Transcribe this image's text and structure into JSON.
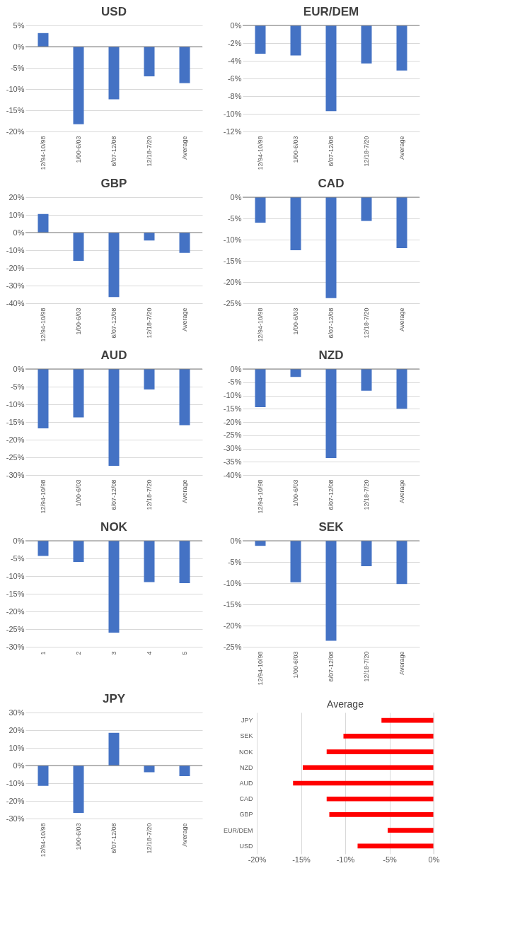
{
  "chart_data": [
    {
      "type": "bar",
      "title": "USD",
      "categories": [
        "12/94-10/98",
        "1/00-6/03",
        "6/07-12/08",
        "12/18-7/20",
        "Average"
      ],
      "series": [
        {
          "color": "#4472c4",
          "values": [
            3.2,
            -18.3,
            -12.4,
            -7.0,
            -8.6
          ]
        }
      ],
      "ylim": [
        -20,
        5
      ],
      "yticks": [
        {
          "value": -20,
          "label": "-20%"
        },
        {
          "value": -15,
          "label": "-15%"
        },
        {
          "value": -10,
          "label": "-10%"
        },
        {
          "value": -5,
          "label": "-5%"
        },
        {
          "value": 0,
          "label": "0%"
        },
        {
          "value": 5,
          "label": "5%"
        }
      ],
      "grid": "y",
      "legend": false
    },
    {
      "type": "bar",
      "title": "EUR/DEM",
      "categories": [
        "12/94-10/98",
        "1/00-6/03",
        "6/07-12/08",
        "12/18-7/20",
        "Average"
      ],
      "series": [
        {
          "color": "#4472c4",
          "values": [
            -3.2,
            -3.4,
            -9.7,
            -4.3,
            -5.1
          ]
        }
      ],
      "ylim": [
        -12,
        0
      ],
      "yticks": [
        {
          "value": -12,
          "label": "-12%"
        },
        {
          "value": -10,
          "label": "-10%"
        },
        {
          "value": -8,
          "label": "-8%"
        },
        {
          "value": -6,
          "label": "-6%"
        },
        {
          "value": -4,
          "label": "-4%"
        },
        {
          "value": -2,
          "label": "-2%"
        },
        {
          "value": 0,
          "label": "0%"
        }
      ],
      "grid": "y",
      "legend": false
    },
    {
      "type": "bar",
      "title": "GBP",
      "categories": [
        "12/94-10/98",
        "1/00-6/03",
        "6/07-12/08",
        "12/18-7/20",
        "Average"
      ],
      "series": [
        {
          "color": "#4472c4",
          "values": [
            10.5,
            -16,
            -36.5,
            -4.5,
            -11.5
          ]
        }
      ],
      "ylim": [
        -40,
        20
      ],
      "yticks": [
        {
          "value": -40,
          "label": "-40%"
        },
        {
          "value": -30,
          "label": "-30%"
        },
        {
          "value": -20,
          "label": "-20%"
        },
        {
          "value": -10,
          "label": "-10%"
        },
        {
          "value": 0,
          "label": "0%"
        },
        {
          "value": 10,
          "label": "10%"
        },
        {
          "value": 20,
          "label": "20%"
        }
      ],
      "grid": "y",
      "legend": false
    },
    {
      "type": "bar",
      "title": "CAD",
      "categories": [
        "12/94-10/98",
        "1/00-6/03",
        "6/07-12/08",
        "12/18-7/20",
        "Average"
      ],
      "series": [
        {
          "color": "#4472c4",
          "values": [
            -6,
            -12.5,
            -23.8,
            -5.6,
            -12
          ]
        }
      ],
      "ylim": [
        -25,
        0
      ],
      "yticks": [
        {
          "value": -25,
          "label": "-25%"
        },
        {
          "value": -20,
          "label": "-20%"
        },
        {
          "value": -15,
          "label": "-15%"
        },
        {
          "value": -10,
          "label": "-10%"
        },
        {
          "value": -5,
          "label": "-5%"
        },
        {
          "value": 0,
          "label": "0%"
        }
      ],
      "grid": "y",
      "legend": false
    },
    {
      "type": "bar",
      "title": "AUD",
      "categories": [
        "12/94-10/98",
        "1/00-6/03",
        "6/07-12/08",
        "12/18-7/20",
        "Average"
      ],
      "series": [
        {
          "color": "#4472c4",
          "values": [
            -16.8,
            -13.7,
            -27.4,
            -5.8,
            -15.9
          ]
        }
      ],
      "ylim": [
        -30,
        0
      ],
      "yticks": [
        {
          "value": -30,
          "label": "-30%"
        },
        {
          "value": -25,
          "label": "-25%"
        },
        {
          "value": -20,
          "label": "-20%"
        },
        {
          "value": -15,
          "label": "-15%"
        },
        {
          "value": -10,
          "label": "-10%"
        },
        {
          "value": -5,
          "label": "-5%"
        },
        {
          "value": 0,
          "label": "0%"
        }
      ],
      "grid": "y",
      "legend": false
    },
    {
      "type": "bar",
      "title": "NZD",
      "categories": [
        "12/94-10/98",
        "1/00-6/03",
        "6/07-12/08",
        "12/18-7/20",
        "Average"
      ],
      "series": [
        {
          "color": "#4472c4",
          "values": [
            -14.4,
            -3,
            -33.6,
            -8.2,
            -15
          ]
        }
      ],
      "ylim": [
        -40,
        0
      ],
      "yticks": [
        {
          "value": -40,
          "label": "-40%"
        },
        {
          "value": -35,
          "label": "-35%"
        },
        {
          "value": -30,
          "label": "-30%"
        },
        {
          "value": -25,
          "label": "-25%"
        },
        {
          "value": -20,
          "label": "-20%"
        },
        {
          "value": -15,
          "label": "-15%"
        },
        {
          "value": -10,
          "label": "-10%"
        },
        {
          "value": -5,
          "label": "-5%"
        },
        {
          "value": 0,
          "label": "0%"
        }
      ],
      "grid": "y",
      "legend": false
    },
    {
      "type": "bar",
      "title": "NOK",
      "categories": [
        "1",
        "2",
        "3",
        "4",
        "5"
      ],
      "series": [
        {
          "color": "#4472c4",
          "values": [
            -4.3,
            -6,
            -26,
            -11.7,
            -12
          ]
        }
      ],
      "ylim": [
        -30,
        0
      ],
      "yticks": [
        {
          "value": -30,
          "label": "-30%"
        },
        {
          "value": -25,
          "label": "-25%"
        },
        {
          "value": -20,
          "label": "-20%"
        },
        {
          "value": -15,
          "label": "-15%"
        },
        {
          "value": -10,
          "label": "-10%"
        },
        {
          "value": -5,
          "label": "-5%"
        },
        {
          "value": 0,
          "label": "0%"
        }
      ],
      "grid": "y",
      "legend": false
    },
    {
      "type": "bar",
      "title": "SEK",
      "categories": [
        "12/94-10/98",
        "1/00-6/03",
        "6/07-12/08",
        "12/18-7/20",
        "Average"
      ],
      "series": [
        {
          "color": "#4472c4",
          "values": [
            -1.2,
            -9.8,
            -23.6,
            -6,
            -10.2
          ]
        }
      ],
      "ylim": [
        -25,
        0
      ],
      "yticks": [
        {
          "value": -25,
          "label": "-25%"
        },
        {
          "value": -20,
          "label": "-20%"
        },
        {
          "value": -15,
          "label": "-15%"
        },
        {
          "value": -10,
          "label": "-10%"
        },
        {
          "value": -5,
          "label": "-5%"
        },
        {
          "value": 0,
          "label": "0%"
        }
      ],
      "grid": "y",
      "legend": false
    },
    {
      "type": "bar",
      "title": "JPY",
      "categories": [
        "12/94-10/98",
        "1/00-6/03",
        "6/07-12/08",
        "12/18-7/20",
        "Average"
      ],
      "series": [
        {
          "color": "#4472c4",
          "values": [
            -11.5,
            -26.8,
            18.5,
            -3.8,
            -6
          ]
        }
      ],
      "ylim": [
        -30,
        30
      ],
      "yticks": [
        {
          "value": -30,
          "label": "-30%"
        },
        {
          "value": -20,
          "label": "-20%"
        },
        {
          "value": -10,
          "label": "-10%"
        },
        {
          "value": 0,
          "label": "0%"
        },
        {
          "value": 10,
          "label": "10%"
        },
        {
          "value": 20,
          "label": "20%"
        },
        {
          "value": 30,
          "label": "30%"
        }
      ],
      "grid": "y",
      "legend": false
    },
    {
      "type": "bar",
      "title": "Average",
      "orientation": "horizontal",
      "categories": [
        "JPY",
        "SEK",
        "NOK",
        "NZD",
        "AUD",
        "CAD",
        "GBP",
        "EUR/DEM",
        "USD"
      ],
      "series": [
        {
          "color": "#ff0000",
          "values": [
            -5.9,
            -10.2,
            -12.1,
            -14.8,
            -15.9,
            -12.1,
            -11.8,
            -5.2,
            -8.6
          ]
        }
      ],
      "xlim": [
        -20,
        0
      ],
      "xticks": [
        {
          "value": -20,
          "label": "-20%"
        },
        {
          "value": -15,
          "label": "-15%"
        },
        {
          "value": -10,
          "label": "-10%"
        },
        {
          "value": -5,
          "label": "-5%"
        },
        {
          "value": 0,
          "label": "0%"
        }
      ],
      "grid": "x",
      "legend": false
    }
  ]
}
